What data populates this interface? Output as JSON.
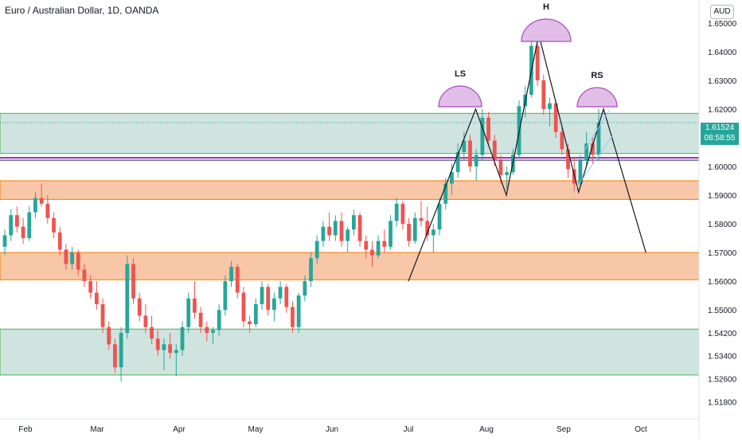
{
  "header": {
    "symbol_title": "Euro / Australian Dollar, 1D, OANDA",
    "currency_label": "AUD"
  },
  "last_price": {
    "value": "1.61524",
    "countdown": "08:58:55"
  },
  "colors": {
    "up": "#26a69a",
    "down": "#ef5350",
    "green_zone": "#cfe4df",
    "green_border": "#4caf50",
    "orange_zone": "#f8c7a8",
    "orange_border": "#f57c00",
    "purple_line": "#9c27b0",
    "pattern_fill": "#e1bee7",
    "pattern_stroke": "#ab47bc",
    "axis_text": "#131722"
  },
  "chart_data": {
    "type": "candlestick",
    "title": "Euro / Australian Dollar, 1D, OANDA",
    "y_axis": {
      "ticks": [
        "1.65000",
        "1.64000",
        "1.63000",
        "1.62000",
        "1.61000",
        "1.60000",
        "1.59000",
        "1.58000",
        "1.57000",
        "1.56000",
        "1.55000",
        "1.54200",
        "1.53400",
        "1.52600",
        "1.51800"
      ],
      "range": [
        1.512,
        1.658
      ],
      "side": "right"
    },
    "x_axis": {
      "ticks": [
        "Feb",
        "Mar",
        "Apr",
        "May",
        "Jun",
        "Jul",
        "Aug",
        "Sep",
        "Oct"
      ]
    },
    "last_price": 1.61524,
    "zones": [
      {
        "kind": "support-resistance",
        "color": "green",
        "from": 1.6045,
        "to": 1.6185
      },
      {
        "kind": "support-resistance",
        "color": "orange",
        "from": 1.5885,
        "to": 1.595
      },
      {
        "kind": "support-resistance",
        "color": "orange",
        "from": 1.5605,
        "to": 1.57
      },
      {
        "kind": "support-resistance",
        "color": "green",
        "from": 1.5273,
        "to": 1.5433
      }
    ],
    "neckline": 1.603,
    "pattern": {
      "name": "head and shoulders",
      "labels": [
        "LS",
        "H",
        "RS"
      ],
      "path": [
        [
          "Jul 1",
          1.56
        ],
        [
          "Jul 28",
          1.62
        ],
        [
          "Aug 9",
          1.59
        ],
        [
          "Aug 22",
          1.646
        ],
        [
          "Sep 7",
          1.591
        ],
        [
          "Sep 17",
          1.62
        ],
        [
          "Oct 3",
          1.57
        ]
      ]
    },
    "series": [
      {
        "values": [
          [
            1.572,
            1.578,
            1.569,
            1.576
          ],
          [
            1.576,
            1.585,
            1.574,
            1.583
          ],
          [
            1.583,
            1.586,
            1.577,
            1.579
          ],
          [
            1.579,
            1.582,
            1.573,
            1.575
          ],
          [
            1.575,
            1.586,
            1.574,
            1.584
          ],
          [
            1.584,
            1.591,
            1.582,
            1.589
          ],
          [
            1.589,
            1.594,
            1.586,
            1.587
          ],
          [
            1.587,
            1.59,
            1.58,
            1.582
          ],
          [
            1.582,
            1.584,
            1.575,
            1.577
          ],
          [
            1.577,
            1.579,
            1.569,
            1.571
          ],
          [
            1.571,
            1.573,
            1.564,
            1.566
          ],
          [
            1.566,
            1.572,
            1.564,
            1.57
          ],
          [
            1.57,
            1.571,
            1.562,
            1.564
          ],
          [
            1.564,
            1.566,
            1.558,
            1.56
          ],
          [
            1.56,
            1.562,
            1.554,
            1.556
          ],
          [
            1.556,
            1.56,
            1.55,
            1.552
          ],
          [
            1.552,
            1.554,
            1.542,
            1.544
          ],
          [
            1.544,
            1.546,
            1.536,
            1.538
          ],
          [
            1.538,
            1.54,
            1.528,
            1.53
          ],
          [
            1.53,
            1.544,
            1.525,
            1.542
          ],
          [
            1.542,
            1.569,
            1.54,
            1.566
          ],
          [
            1.566,
            1.568,
            1.552,
            1.554
          ],
          [
            1.554,
            1.556,
            1.546,
            1.548
          ],
          [
            1.548,
            1.552,
            1.542,
            1.544
          ],
          [
            1.544,
            1.548,
            1.538,
            1.54
          ],
          [
            1.54,
            1.543,
            1.534,
            1.536
          ],
          [
            1.536,
            1.54,
            1.529,
            1.538
          ],
          [
            1.538,
            1.542,
            1.533,
            1.535
          ],
          [
            1.535,
            1.538,
            1.527,
            1.536
          ],
          [
            1.536,
            1.546,
            1.534,
            1.544
          ],
          [
            1.544,
            1.556,
            1.542,
            1.554
          ],
          [
            1.554,
            1.56,
            1.547,
            1.549
          ],
          [
            1.549,
            1.551,
            1.542,
            1.544
          ],
          [
            1.544,
            1.546,
            1.539,
            1.542
          ],
          [
            1.542,
            1.544,
            1.538,
            1.543
          ],
          [
            1.543,
            1.552,
            1.541,
            1.55
          ],
          [
            1.55,
            1.562,
            1.548,
            1.56
          ],
          [
            1.56,
            1.567,
            1.558,
            1.565
          ],
          [
            1.565,
            1.566,
            1.554,
            1.556
          ],
          [
            1.556,
            1.558,
            1.544,
            1.546
          ],
          [
            1.546,
            1.548,
            1.542,
            1.545
          ],
          [
            1.545,
            1.554,
            1.544,
            1.552
          ],
          [
            1.552,
            1.56,
            1.55,
            1.558
          ],
          [
            1.558,
            1.559,
            1.548,
            1.55
          ],
          [
            1.55,
            1.556,
            1.546,
            1.554
          ],
          [
            1.554,
            1.56,
            1.552,
            1.558
          ],
          [
            1.558,
            1.559,
            1.549,
            1.551
          ],
          [
            1.551,
            1.553,
            1.542,
            1.544
          ],
          [
            1.544,
            1.556,
            1.542,
            1.555
          ],
          [
            1.555,
            1.562,
            1.553,
            1.56
          ],
          [
            1.56,
            1.57,
            1.558,
            1.568
          ],
          [
            1.568,
            1.576,
            1.566,
            1.574
          ],
          [
            1.574,
            1.581,
            1.572,
            1.579
          ],
          [
            1.579,
            1.584,
            1.574,
            1.576
          ],
          [
            1.576,
            1.583,
            1.574,
            1.581
          ],
          [
            1.581,
            1.584,
            1.572,
            1.574
          ],
          [
            1.574,
            1.579,
            1.57,
            1.578
          ],
          [
            1.578,
            1.585,
            1.576,
            1.583
          ],
          [
            1.583,
            1.584,
            1.572,
            1.574
          ],
          [
            1.574,
            1.576,
            1.568,
            1.571
          ],
          [
            1.571,
            1.574,
            1.565,
            1.569
          ],
          [
            1.569,
            1.576,
            1.568,
            1.574
          ],
          [
            1.574,
            1.578,
            1.57,
            1.572
          ],
          [
            1.572,
            1.583,
            1.571,
            1.581
          ],
          [
            1.581,
            1.589,
            1.579,
            1.587
          ],
          [
            1.587,
            1.588,
            1.578,
            1.58
          ],
          [
            1.58,
            1.582,
            1.572,
            1.574
          ],
          [
            1.574,
            1.584,
            1.573,
            1.582
          ],
          [
            1.582,
            1.588,
            1.579,
            1.581
          ],
          [
            1.581,
            1.586,
            1.574,
            1.576
          ],
          [
            1.576,
            1.58,
            1.57,
            1.578
          ],
          [
            1.578,
            1.589,
            1.576,
            1.587
          ],
          [
            1.587,
            1.596,
            1.585,
            1.594
          ],
          [
            1.594,
            1.601,
            1.59,
            1.598
          ],
          [
            1.598,
            1.608,
            1.596,
            1.605
          ],
          [
            1.605,
            1.612,
            1.602,
            1.609
          ],
          [
            1.609,
            1.611,
            1.598,
            1.6
          ],
          [
            1.6,
            1.606,
            1.595,
            1.604
          ],
          [
            1.604,
            1.62,
            1.602,
            1.617
          ],
          [
            1.617,
            1.619,
            1.607,
            1.609
          ],
          [
            1.609,
            1.611,
            1.6,
            1.602
          ],
          [
            1.602,
            1.604,
            1.594,
            1.597
          ],
          [
            1.597,
            1.6,
            1.592,
            1.598
          ],
          [
            1.598,
            1.606,
            1.597,
            1.604
          ],
          [
            1.604,
            1.623,
            1.603,
            1.621
          ],
          [
            1.621,
            1.628,
            1.617,
            1.625
          ],
          [
            1.625,
            1.646,
            1.624,
            1.642
          ],
          [
            1.642,
            1.644,
            1.628,
            1.63
          ],
          [
            1.63,
            1.632,
            1.618,
            1.62
          ],
          [
            1.62,
            1.624,
            1.614,
            1.622
          ],
          [
            1.622,
            1.623,
            1.61,
            1.612
          ],
          [
            1.612,
            1.614,
            1.604,
            1.606
          ],
          [
            1.606,
            1.608,
            1.596,
            1.599
          ],
          [
            1.599,
            1.603,
            1.591,
            1.594
          ],
          [
            1.594,
            1.604,
            1.593,
            1.602
          ],
          [
            1.602,
            1.612,
            1.6,
            1.608
          ],
          [
            1.608,
            1.61,
            1.601,
            1.604
          ],
          [
            1.604,
            1.62,
            1.602,
            1.6152
          ]
        ]
      }
    ]
  }
}
